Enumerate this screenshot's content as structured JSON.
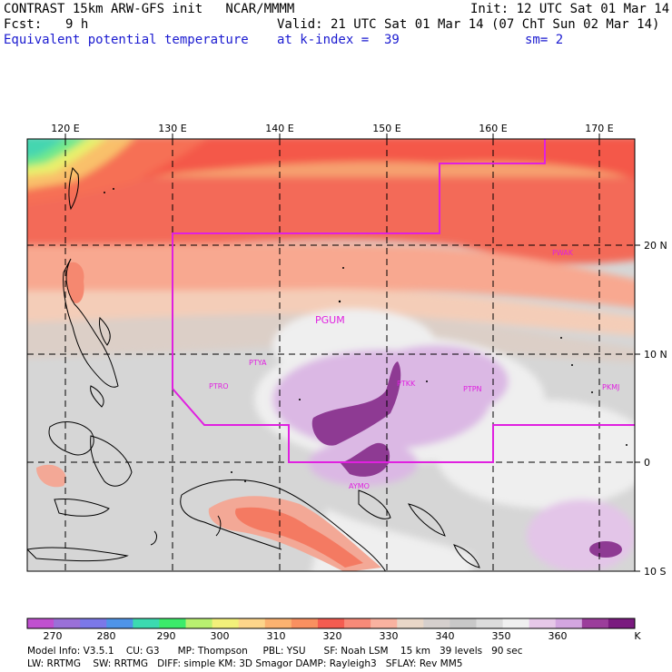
{
  "header": {
    "line1_left": "CONTRAST 15km ARW-GFS init   NCAR/MMMM",
    "line1_right": "Init: 12 UTC Sat 01 Mar 14",
    "fcst_label": "Fcst:",
    "fcst_value": "9 h",
    "valid": "Valid: 21 UTC Sat 01 Mar 14 (07 ChT Sun 02 Mar 14)",
    "field": "Equivalent potential temperature",
    "level": "at k-index =  39",
    "smooth": "sm= 2"
  },
  "map": {
    "lon_labels": [
      "120 E",
      "130 E",
      "140 E",
      "150 E",
      "160 E",
      "170 E"
    ],
    "lat_labels": [
      "20 N",
      "10 N",
      "0",
      "10 S"
    ],
    "stations": [
      "PGUM",
      "PTYA",
      "PTRO",
      "PTKK",
      "PTPN",
      "PKMJ",
      "PWAK",
      "AYMO"
    ],
    "colors": {
      "boundary": "#e020e0",
      "grid": "#000000"
    }
  },
  "colorbar": {
    "labels": [
      "270",
      "280",
      "290",
      "300",
      "310",
      "320",
      "330",
      "340",
      "350",
      "360"
    ],
    "unit": "K",
    "colors": [
      "#c050d0",
      "#9a70d8",
      "#7b78e8",
      "#4f94e8",
      "#3cdab0",
      "#3ceb6a",
      "#b9f070",
      "#f2f07a",
      "#fdd58a",
      "#fbb270",
      "#f99060",
      "#f45c50",
      "#f88a78",
      "#f9b2a0",
      "#e9d7c8",
      "#d5cfcd",
      "#c8c8c8",
      "#dcdcdc",
      "#f0f0f0",
      "#e6c8e8",
      "#d3a6e0",
      "#9b3d9b",
      "#7a1a7f"
    ]
  },
  "footer": {
    "line1": "Model Info: V3.5.1    CU: G3      MP: Thompson     PBL: YSU      SF: Noah LSM    15 km   39 levels   90 sec",
    "line2": "LW: RRTMG    SW: RRTMG   DIFF: simple KM: 3D Smagor DAMP: Rayleigh3   SFLAY: Rev MM5"
  }
}
